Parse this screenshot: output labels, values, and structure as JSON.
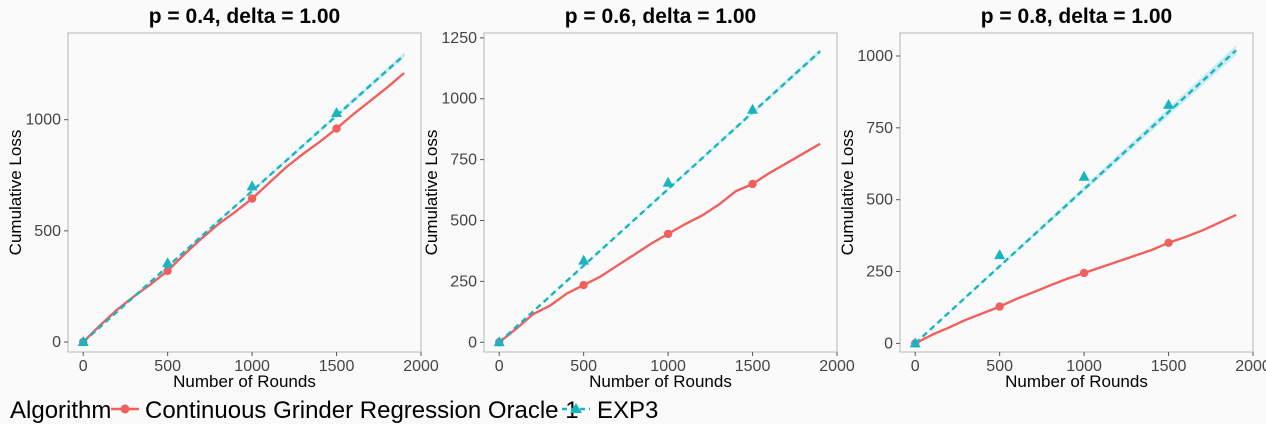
{
  "legend": {
    "title": "Algorithm",
    "entries": [
      "Continuous Grinder Regression Oracle 1",
      "EXP3"
    ]
  },
  "colors": {
    "oracle": "#f0605d",
    "exp3": "#19b4bf",
    "band": "#bfeaf0",
    "frame": "#b5b5b5",
    "tick": "#555555"
  },
  "chart_data": [
    {
      "type": "line",
      "title": "p = 0.4, delta = 1.00",
      "xlabel": "Number of Rounds",
      "ylabel": "Cumulative Loss",
      "xlim": [
        -90,
        2000
      ],
      "ylim": [
        -45,
        1390
      ],
      "xticks": [
        0,
        500,
        1000,
        1500,
        2000
      ],
      "yticks": [
        0,
        500,
        1000
      ],
      "series": [
        {
          "name": "Continuous Grinder Regression Oracle 1",
          "style": "solid",
          "marker": "circle",
          "x": [
            0,
            100,
            200,
            300,
            400,
            500,
            600,
            700,
            800,
            900,
            1000,
            1100,
            1200,
            1300,
            1400,
            1500,
            1600,
            1700,
            1800,
            1900
          ],
          "y": [
            0,
            75,
            145,
            205,
            260,
            320,
            395,
            465,
            530,
            585,
            645,
            715,
            785,
            845,
            900,
            960,
            1025,
            1085,
            1145,
            1210
          ],
          "marker_x": [
            0,
            500,
            1000,
            1500
          ],
          "marker_y": [
            0,
            320,
            645,
            960
          ]
        },
        {
          "name": "EXP3",
          "style": "dashed",
          "marker": "triangle",
          "x": [
            0,
            1900
          ],
          "y": [
            0,
            1290
          ],
          "band": 12,
          "marker_x": [
            0,
            500,
            1000,
            1500
          ],
          "marker_y": [
            0,
            355,
            700,
            1030
          ]
        }
      ]
    },
    {
      "type": "line",
      "title": "p = 0.6, delta = 1.00",
      "xlabel": "Number of Rounds",
      "ylabel": "Cumulative Loss",
      "xlim": [
        -90,
        2000
      ],
      "ylim": [
        -40,
        1270
      ],
      "xticks": [
        0,
        500,
        1000,
        1500,
        2000
      ],
      "yticks": [
        0,
        250,
        500,
        750,
        1000,
        1250
      ],
      "series": [
        {
          "name": "Continuous Grinder Regression Oracle 1",
          "style": "solid",
          "marker": "circle",
          "x": [
            0,
            100,
            200,
            300,
            400,
            500,
            600,
            700,
            800,
            900,
            1000,
            1100,
            1200,
            1300,
            1400,
            1500,
            1600,
            1700,
            1800,
            1900
          ],
          "y": [
            0,
            55,
            115,
            150,
            200,
            235,
            270,
            315,
            360,
            405,
            445,
            485,
            520,
            565,
            620,
            650,
            695,
            735,
            775,
            815
          ],
          "marker_x": [
            0,
            500,
            1000,
            1500
          ],
          "marker_y": [
            0,
            235,
            445,
            650
          ]
        },
        {
          "name": "EXP3",
          "style": "dashed",
          "marker": "triangle",
          "x": [
            0,
            1900
          ],
          "y": [
            0,
            1195
          ],
          "band": 10,
          "marker_x": [
            0,
            500,
            1000,
            1500
          ],
          "marker_y": [
            0,
            335,
            655,
            955
          ]
        }
      ]
    },
    {
      "type": "line",
      "title": "p = 0.8, delta = 1.00",
      "xlabel": "Number of Rounds",
      "ylabel": "Cumulative Loss",
      "xlim": [
        -90,
        2000
      ],
      "ylim": [
        -30,
        1080
      ],
      "xticks": [
        0,
        500,
        1000,
        1500,
        2000
      ],
      "yticks": [
        0,
        250,
        500,
        750,
        1000
      ],
      "series": [
        {
          "name": "Continuous Grinder Regression Oracle 1",
          "style": "solid",
          "marker": "circle",
          "x": [
            0,
            100,
            200,
            300,
            400,
            500,
            600,
            700,
            800,
            900,
            1000,
            1100,
            1200,
            1300,
            1400,
            1500,
            1600,
            1700,
            1800,
            1900
          ],
          "y": [
            0,
            30,
            55,
            82,
            105,
            128,
            155,
            178,
            202,
            225,
            245,
            265,
            285,
            305,
            325,
            350,
            370,
            393,
            420,
            447
          ],
          "marker_x": [
            0,
            500,
            1000,
            1500
          ],
          "marker_y": [
            0,
            128,
            245,
            350
          ]
        },
        {
          "name": "EXP3",
          "style": "dashed",
          "marker": "triangle",
          "x": [
            0,
            1900
          ],
          "y": [
            0,
            1020
          ],
          "band": 18,
          "marker_x": [
            0,
            500,
            1000,
            1500
          ],
          "marker_y": [
            0,
            307,
            580,
            830
          ]
        }
      ]
    }
  ]
}
